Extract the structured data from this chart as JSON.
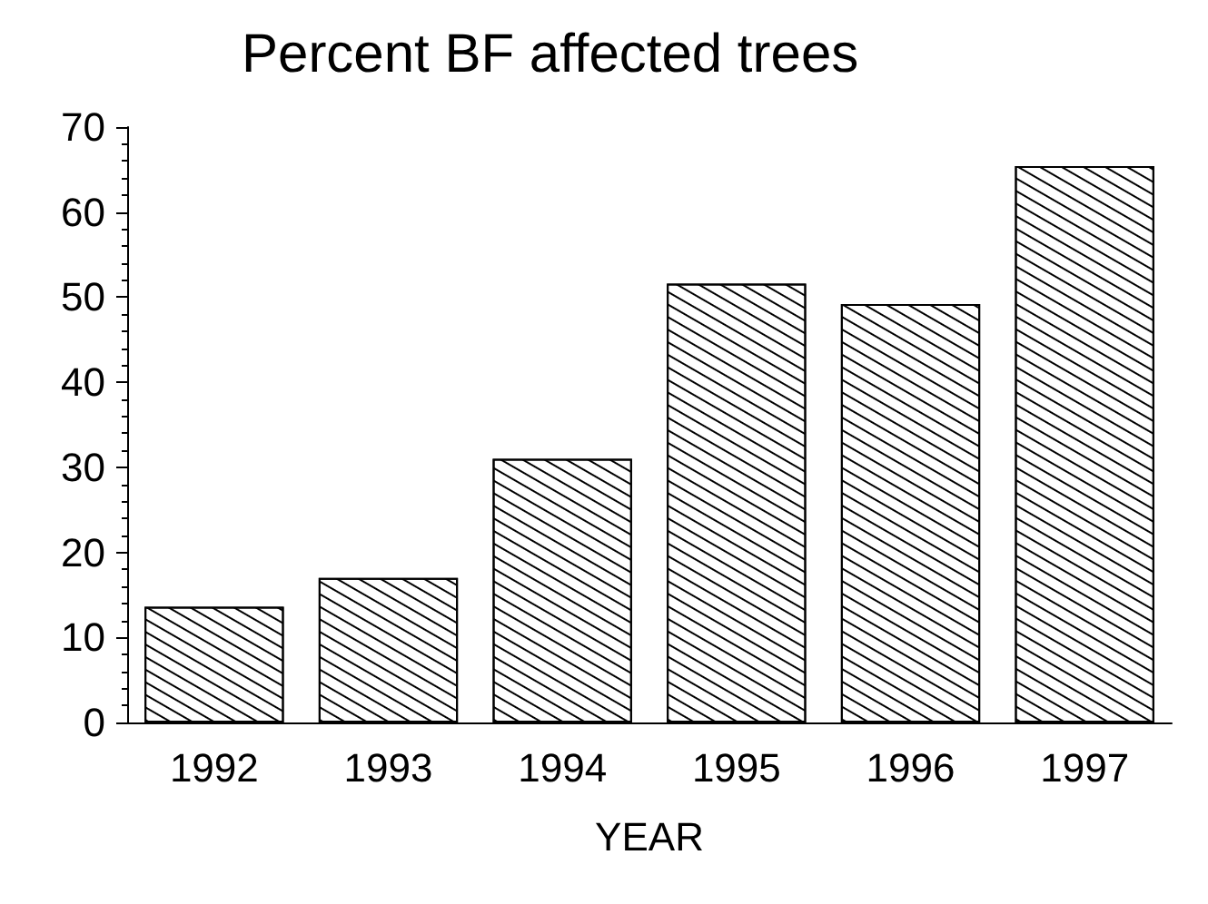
{
  "chart_data": {
    "type": "bar",
    "title": "Percent BF affected trees",
    "xlabel": "YEAR",
    "categories": [
      "1992",
      "1993",
      "1994",
      "1995",
      "1996",
      "1997"
    ],
    "values": [
      13.6,
      17.0,
      31.0,
      51.6,
      49.2,
      65.4
    ],
    "color": "#000000",
    "ylim": [
      0,
      70
    ],
    "yticks": [
      0,
      10,
      20,
      30,
      40,
      50,
      60,
      70
    ],
    "grid": false
  }
}
